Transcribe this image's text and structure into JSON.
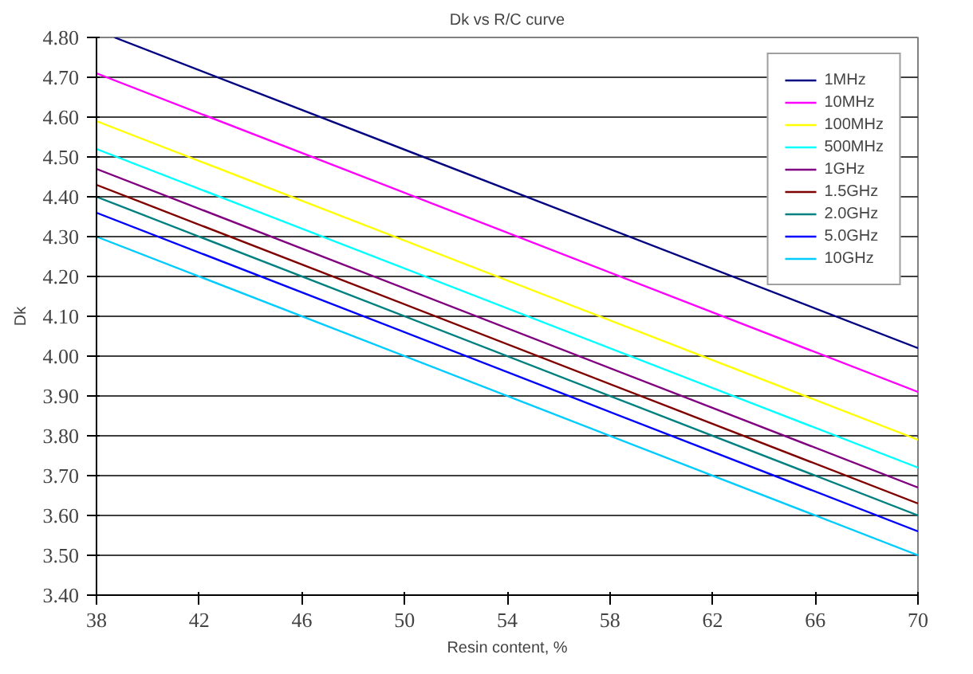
{
  "chart_data": {
    "type": "line",
    "title": "Dk vs R/C curve",
    "xlabel": "Resin content, %",
    "ylabel": "Dk",
    "xlim": [
      38,
      70
    ],
    "xticks": [
      38,
      42,
      46,
      50,
      54,
      58,
      62,
      66,
      70
    ],
    "ylim": [
      3.4,
      4.8
    ],
    "yticks": [
      {
        "value": 3.4,
        "label": "3.40"
      },
      {
        "value": 3.5,
        "label": "3.50"
      },
      {
        "value": 3.6,
        "label": "3.60"
      },
      {
        "value": 3.7,
        "label": "3.70"
      },
      {
        "value": 3.8,
        "label": "3.80"
      },
      {
        "value": 3.9,
        "label": "3.90"
      },
      {
        "value": 4.0,
        "label": "4.00"
      },
      {
        "value": 4.1,
        "label": "4.10"
      },
      {
        "value": 4.2,
        "label": "4.20"
      },
      {
        "value": 4.3,
        "label": "4.30"
      },
      {
        "value": 4.4,
        "label": "4.40"
      },
      {
        "value": 4.5,
        "label": "4.50"
      },
      {
        "value": 4.6,
        "label": "4.60"
      },
      {
        "value": 4.7,
        "label": "4.70"
      },
      {
        "value": 4.8,
        "label": "4.80"
      }
    ],
    "grid": "y",
    "legend": "top right",
    "marker": "none",
    "line_style": "solid",
    "series": [
      {
        "name": "1MHz",
        "color": "#000080",
        "x": [
          38.7,
          70
        ],
        "values": [
          4.8,
          4.02
        ]
      },
      {
        "name": "10MHz",
        "color": "#ff00ff",
        "x": [
          38,
          70
        ],
        "values": [
          4.71,
          3.91
        ]
      },
      {
        "name": "100MHz",
        "color": "#ffff00",
        "x": [
          38,
          70
        ],
        "values": [
          4.59,
          3.79
        ]
      },
      {
        "name": "500MHz",
        "color": "#00ffff",
        "x": [
          38,
          70
        ],
        "values": [
          4.52,
          3.72
        ]
      },
      {
        "name": "1GHz",
        "color": "#800080",
        "x": [
          38,
          70
        ],
        "values": [
          4.47,
          3.67
        ]
      },
      {
        "name": "1.5GHz",
        "color": "#800000",
        "x": [
          38,
          70
        ],
        "values": [
          4.43,
          3.63
        ]
      },
      {
        "name": "2.0GHz",
        "color": "#008080",
        "x": [
          38,
          70
        ],
        "values": [
          4.4,
          3.6
        ]
      },
      {
        "name": "5.0GHz",
        "color": "#0000ff",
        "x": [
          38,
          70
        ],
        "values": [
          4.36,
          3.56
        ]
      },
      {
        "name": "10GHz",
        "color": "#00ccff",
        "x": [
          38,
          70
        ],
        "values": [
          4.3,
          3.5
        ]
      }
    ]
  }
}
